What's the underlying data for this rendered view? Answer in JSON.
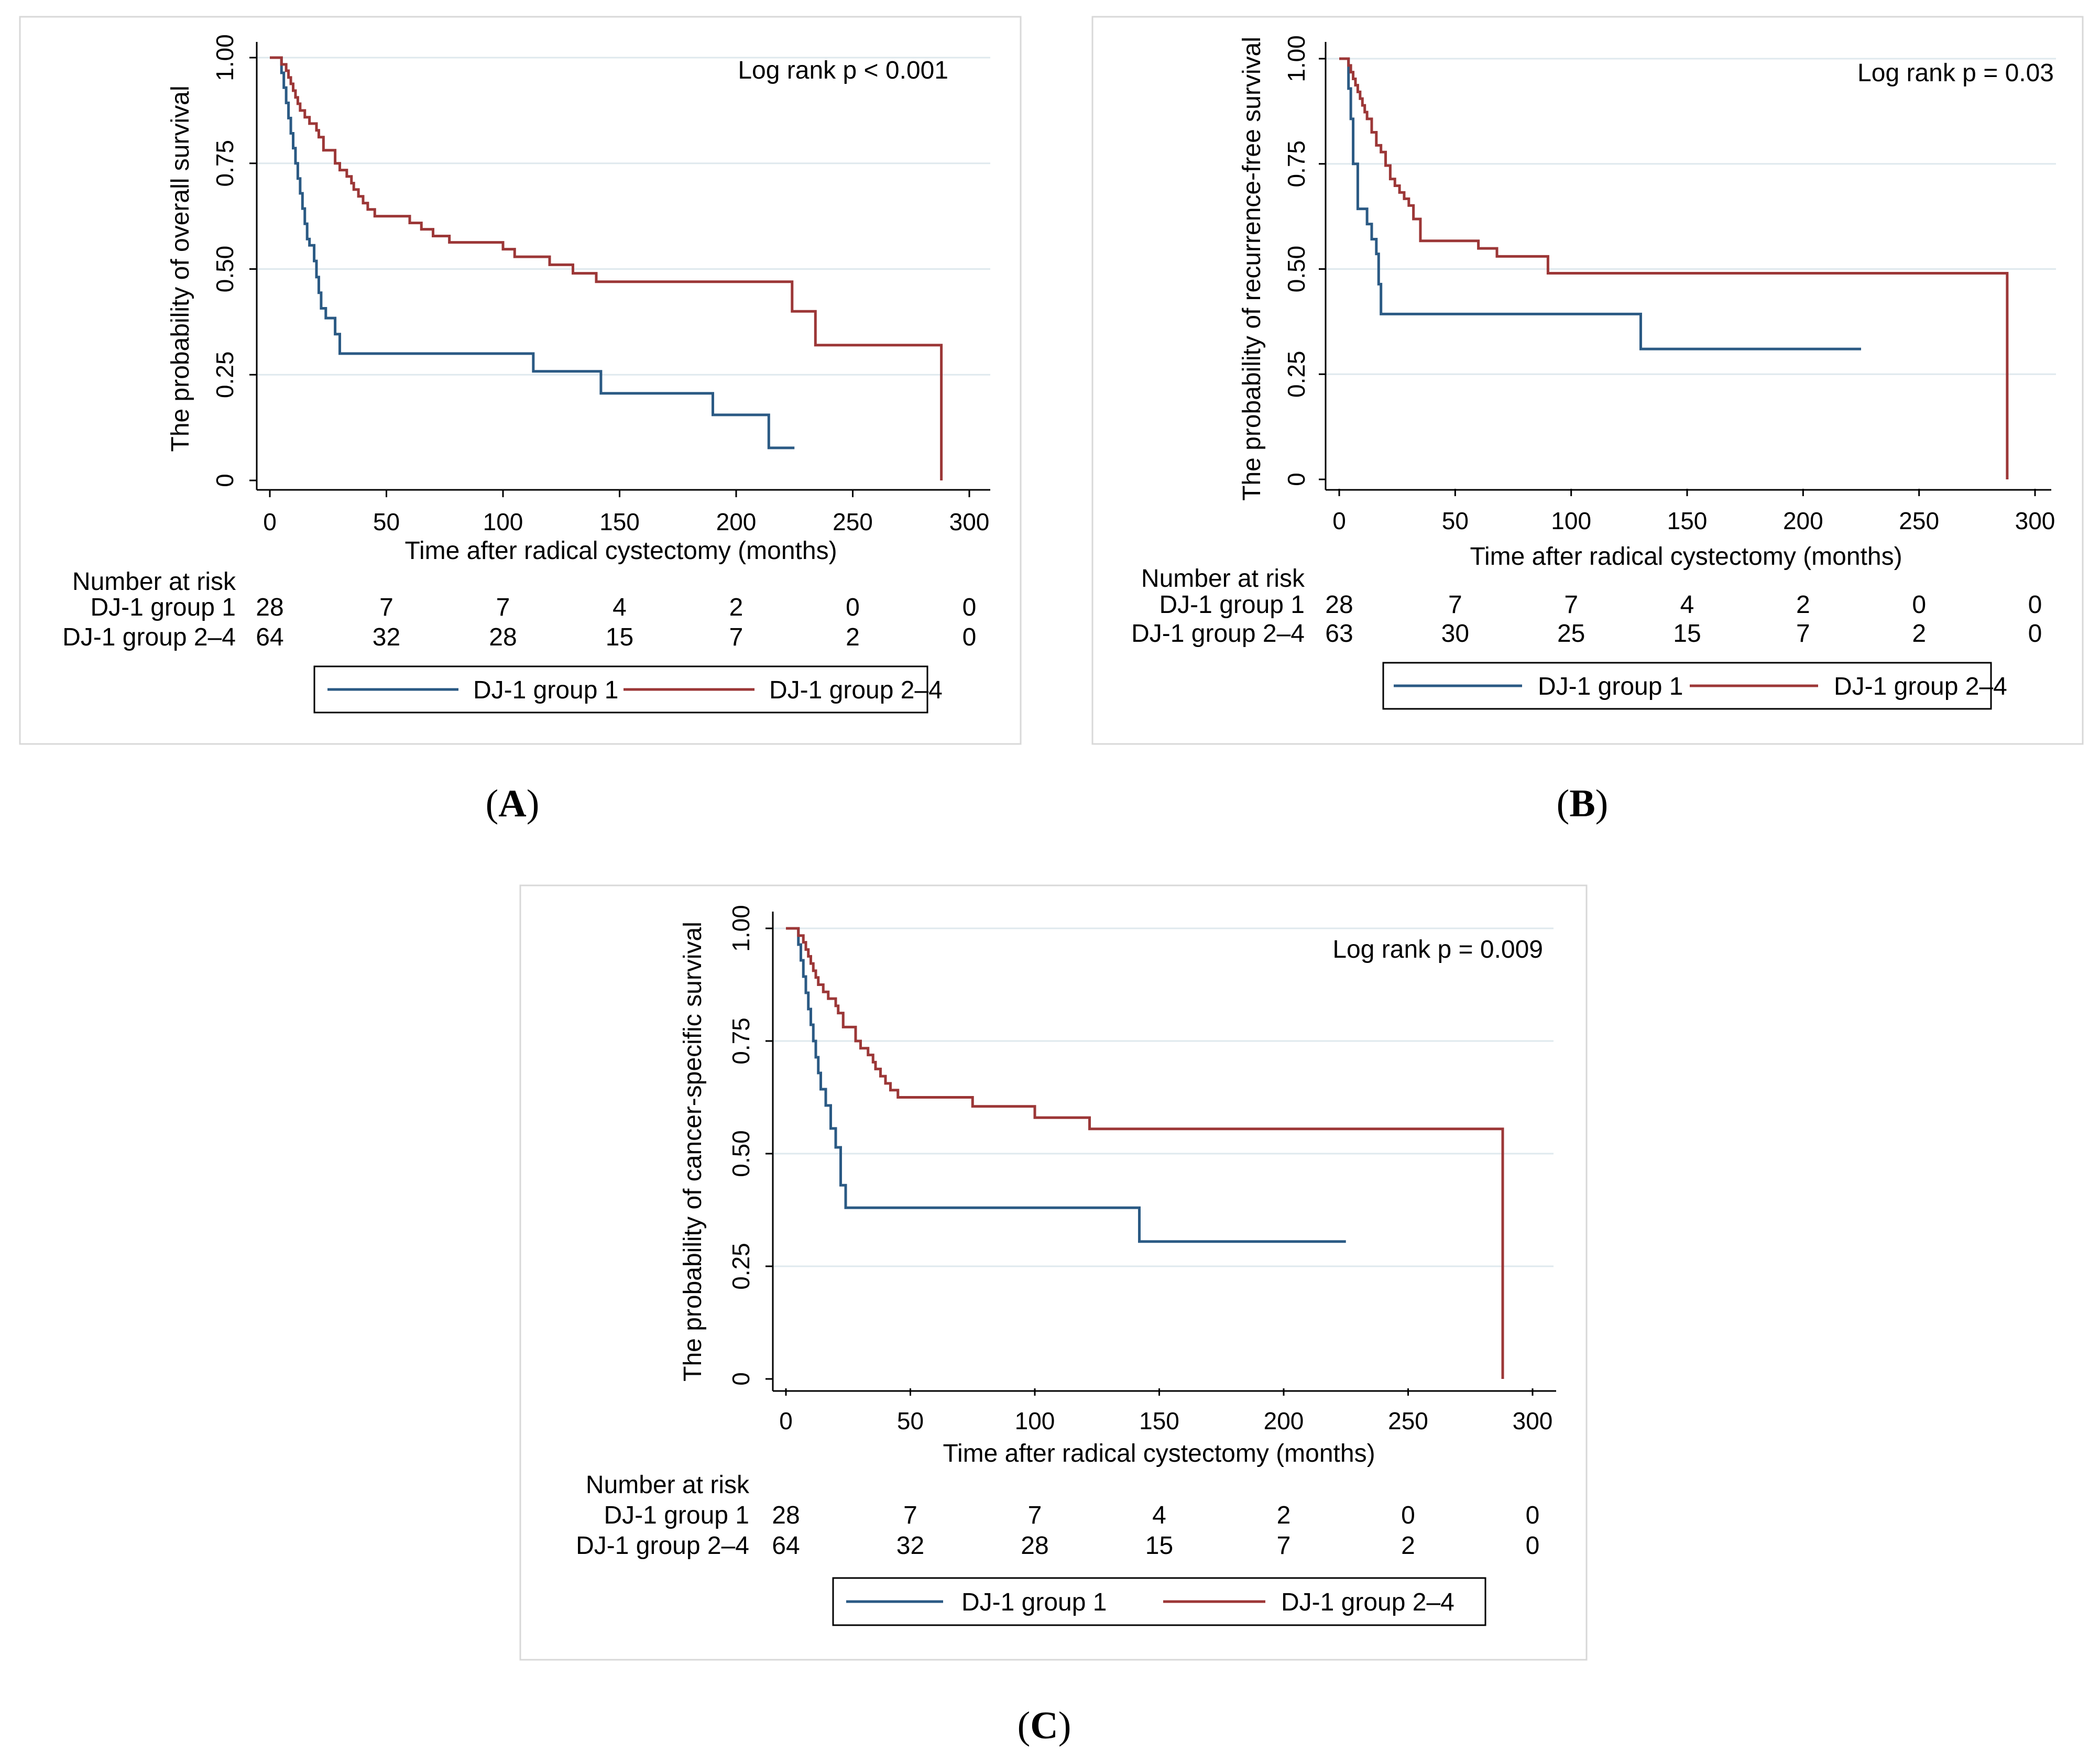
{
  "chart_data": [
    {
      "type": "line",
      "panel_label": "A",
      "ylabel": "The probability of overall survival",
      "xlabel": "Time after radical cystectomy (months)",
      "annotation": "Log rank p < 0.001",
      "xlim": [
        0,
        300
      ],
      "ylim": [
        0,
        1
      ],
      "xticks": [
        0,
        50,
        100,
        150,
        200,
        250,
        300
      ],
      "yticks": [
        0,
        0.25,
        0.5,
        0.75,
        1
      ],
      "ytick_labels": [
        "0",
        "0.25",
        "0.50",
        "0.75",
        "1.00"
      ],
      "risk_title": "Number at risk",
      "risk_table": [
        {
          "label": "DJ-1 group 1",
          "counts": [
            "28",
            "7",
            "7",
            "4",
            "2",
            "0",
            "0"
          ]
        },
        {
          "label": "DJ-1 group 2–4",
          "counts": [
            "64",
            "32",
            "28",
            "15",
            "7",
            "2",
            "0"
          ]
        }
      ],
      "series": [
        {
          "name": "DJ-1 group 1",
          "color": "#2b5a84",
          "x": [
            0,
            4,
            5,
            6,
            7,
            8,
            9,
            10,
            11,
            12,
            13,
            14,
            15,
            16,
            17,
            18,
            19,
            20,
            21,
            22,
            24,
            26,
            28,
            29,
            30,
            113,
            142,
            190,
            214,
            225
          ],
          "y": [
            1.0,
            1.0,
            0.964,
            0.929,
            0.893,
            0.857,
            0.821,
            0.786,
            0.75,
            0.714,
            0.679,
            0.643,
            0.607,
            0.571,
            0.556,
            0.556,
            0.519,
            0.481,
            0.444,
            0.407,
            0.384,
            0.384,
            0.346,
            0.346,
            0.3,
            0.258,
            0.206,
            0.155,
            0.077,
            0.077
          ]
        },
        {
          "name": "DJ-1 group 2–4",
          "color": "#9c3737",
          "x": [
            0,
            4,
            5,
            7,
            8,
            9,
            10,
            11,
            12,
            13,
            15,
            17,
            20,
            21,
            23,
            28,
            30,
            33,
            35,
            36,
            38,
            40,
            42,
            45,
            60,
            65,
            68,
            70,
            75,
            77,
            80,
            100,
            105,
            110,
            120,
            125,
            130,
            140,
            150,
            160,
            170,
            180,
            190,
            200,
            210,
            224,
            234,
            287,
            288
          ],
          "y": [
            1.0,
            1.0,
            0.984,
            0.969,
            0.953,
            0.938,
            0.922,
            0.906,
            0.891,
            0.875,
            0.859,
            0.844,
            0.828,
            0.812,
            0.781,
            0.75,
            0.734,
            0.719,
            0.703,
            0.688,
            0.672,
            0.656,
            0.641,
            0.625,
            0.609,
            0.594,
            0.594,
            0.578,
            0.578,
            0.563,
            0.563,
            0.547,
            0.529,
            0.529,
            0.51,
            0.51,
            0.49,
            0.47,
            0.47,
            0.47,
            0.47,
            0.47,
            0.47,
            0.47,
            0.47,
            0.4,
            0.32,
            0.32,
            0.0
          ]
        }
      ]
    },
    {
      "type": "line",
      "panel_label": "B",
      "ylabel": "The probability of recurrence-free survival",
      "xlabel": "Time after radical cystectomy (months)",
      "annotation": "Log rank p = 0.03",
      "xlim": [
        0,
        300
      ],
      "ylim": [
        0,
        1
      ],
      "xticks": [
        0,
        50,
        100,
        150,
        200,
        250,
        300
      ],
      "yticks": [
        0,
        0.25,
        0.5,
        0.75,
        1
      ],
      "ytick_labels": [
        "0",
        "0.25",
        "0.50",
        "0.75",
        "1.00"
      ],
      "risk_title": "Number at risk",
      "risk_table": [
        {
          "label": "DJ-1 group 1",
          "counts": [
            "28",
            "7",
            "7",
            "4",
            "2",
            "0",
            "0"
          ]
        },
        {
          "label": "DJ-1 group 2–4",
          "counts": [
            "63",
            "30",
            "25",
            "15",
            "7",
            "2",
            "0"
          ]
        }
      ],
      "series": [
        {
          "name": "DJ-1 group 1",
          "color": "#2b5a84",
          "x": [
            0,
            3,
            4,
            5,
            6,
            8,
            10,
            12,
            14,
            16,
            17,
            18,
            130,
            190,
            225
          ],
          "y": [
            1.0,
            1.0,
            0.929,
            0.857,
            0.75,
            0.643,
            0.643,
            0.607,
            0.571,
            0.536,
            0.464,
            0.393,
            0.31,
            0.31,
            0.31
          ]
        },
        {
          "name": "DJ-1 group 2–4",
          "color": "#9c3737",
          "x": [
            0,
            3,
            4,
            5,
            6,
            7,
            8,
            9,
            10,
            11,
            12,
            14,
            16,
            18,
            20,
            22,
            24,
            26,
            28,
            30,
            32,
            35,
            60,
            68,
            90,
            100,
            150,
            200,
            287,
            288
          ],
          "y": [
            1.0,
            1.0,
            0.984,
            0.968,
            0.952,
            0.937,
            0.921,
            0.905,
            0.889,
            0.873,
            0.857,
            0.825,
            0.794,
            0.778,
            0.746,
            0.714,
            0.698,
            0.682,
            0.667,
            0.651,
            0.619,
            0.567,
            0.549,
            0.53,
            0.49,
            0.49,
            0.49,
            0.49,
            0.49,
            0.0
          ]
        }
      ]
    },
    {
      "type": "line",
      "panel_label": "C",
      "ylabel": "The probability of cancer-specific survival",
      "xlabel": "Time after radical cystectomy (months)",
      "annotation": "Log rank p = 0.009",
      "xlim": [
        0,
        300
      ],
      "ylim": [
        0,
        1
      ],
      "xticks": [
        0,
        50,
        100,
        150,
        200,
        250,
        300
      ],
      "yticks": [
        0,
        0.25,
        0.5,
        0.75,
        1
      ],
      "ytick_labels": [
        "0",
        "0.25",
        "0.50",
        "0.75",
        "1.00"
      ],
      "risk_title": "Number at risk",
      "risk_table": [
        {
          "label": "DJ-1 group 1",
          "counts": [
            "28",
            "7",
            "7",
            "4",
            "2",
            "0",
            "0"
          ]
        },
        {
          "label": "DJ-1 group 2–4",
          "counts": [
            "64",
            "32",
            "28",
            "15",
            "7",
            "2",
            "0"
          ]
        }
      ],
      "series": [
        {
          "name": "DJ-1 group 1",
          "color": "#2b5a84",
          "x": [
            0,
            4,
            5,
            6,
            7,
            8,
            9,
            10,
            11,
            12,
            13,
            14,
            16,
            18,
            19,
            20,
            22,
            24,
            142,
            190,
            225
          ],
          "y": [
            1.0,
            1.0,
            0.964,
            0.929,
            0.893,
            0.857,
            0.821,
            0.786,
            0.75,
            0.714,
            0.679,
            0.643,
            0.607,
            0.556,
            0.556,
            0.514,
            0.43,
            0.38,
            0.305,
            0.305,
            0.305
          ]
        },
        {
          "name": "DJ-1 group 2–4",
          "color": "#9c3737",
          "x": [
            0,
            4,
            5,
            7,
            8,
            9,
            10,
            11,
            12,
            13,
            15,
            17,
            20,
            21,
            23,
            28,
            30,
            33,
            35,
            36,
            38,
            40,
            42,
            45,
            75,
            100,
            122,
            150,
            200,
            287,
            288
          ],
          "y": [
            1.0,
            1.0,
            0.984,
            0.969,
            0.953,
            0.938,
            0.922,
            0.906,
            0.891,
            0.875,
            0.859,
            0.844,
            0.828,
            0.812,
            0.781,
            0.75,
            0.734,
            0.719,
            0.703,
            0.688,
            0.672,
            0.656,
            0.641,
            0.625,
            0.605,
            0.58,
            0.555,
            0.555,
            0.555,
            0.555,
            0.0
          ]
        }
      ]
    }
  ]
}
